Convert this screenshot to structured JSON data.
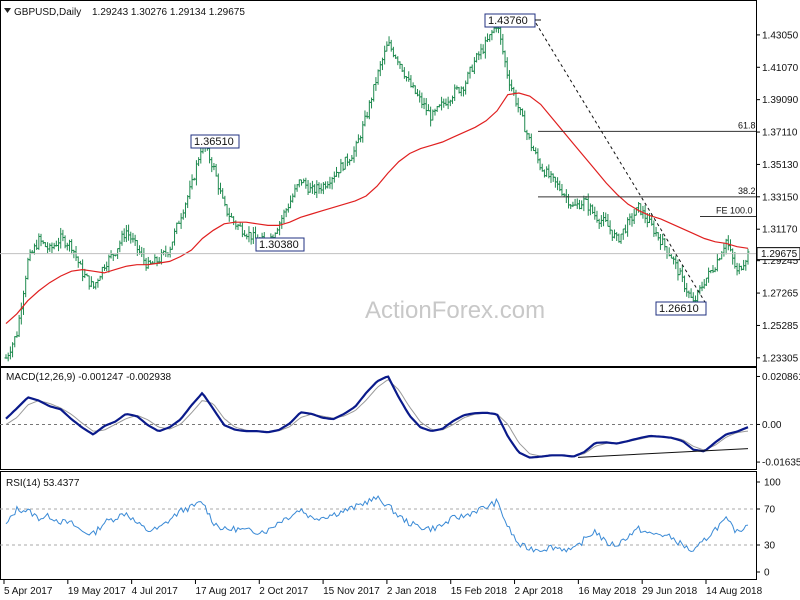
{
  "header": {
    "symbol": "GBPUSD,Daily",
    "ohlc": "1.29243 1.30276 1.29134 1.29675"
  },
  "watermark": "ActionForex.com",
  "colors": {
    "price_bar": "#1f8a4f",
    "ma": "#e02020",
    "macd_line": "#0a1a8a",
    "macd_signal": "#9a9a9a",
    "rsi_line": "#3a8ad6",
    "grid_dash": "#777777",
    "box_border": "#203080"
  },
  "chart_data": [
    {
      "type": "line",
      "name": "price",
      "series": [
        {
          "name": "",
          "values": [
            1.233,
            1.248,
            1.292,
            1.305,
            1.299,
            1.306,
            1.302,
            1.285,
            1.276,
            1.29,
            1.298,
            1.311,
            1.3,
            1.289,
            1.293,
            1.3,
            1.32,
            1.338,
            1.3651,
            1.35,
            1.325,
            1.315,
            1.31,
            1.305,
            1.3038,
            1.315,
            1.328,
            1.342,
            1.335,
            1.338,
            1.345,
            1.352,
            1.36,
            1.38,
            1.405,
            1.425,
            1.415,
            1.4,
            1.39,
            1.38,
            1.388,
            1.395,
            1.4,
            1.415,
            1.425,
            1.4376,
            1.405,
            1.385,
            1.365,
            1.35,
            1.342,
            1.335,
            1.325,
            1.329,
            1.32,
            1.315,
            1.305,
            1.315,
            1.325,
            1.315,
            1.305,
            1.295,
            1.28,
            1.2661,
            1.28,
            1.29,
            1.305,
            1.285,
            1.2968
          ]
        },
        {
          "name": "",
          "values": [
            1.254,
            1.26,
            1.268,
            1.274,
            1.279,
            1.283,
            1.286,
            1.287,
            1.286,
            1.285,
            1.287,
            1.289,
            1.29,
            1.29,
            1.291,
            1.292,
            1.295,
            1.299,
            1.306,
            1.311,
            1.315,
            1.316,
            1.316,
            1.315,
            1.314,
            1.314,
            1.316,
            1.319,
            1.321,
            1.323,
            1.325,
            1.327,
            1.329,
            1.332,
            1.338,
            1.346,
            1.353,
            1.358,
            1.361,
            1.363,
            1.365,
            1.368,
            1.371,
            1.374,
            1.378,
            1.384,
            1.394,
            1.395,
            1.393,
            1.388,
            1.38,
            1.372,
            1.364,
            1.356,
            1.348,
            1.34,
            1.333,
            1.327,
            1.323,
            1.32,
            1.318,
            1.315,
            1.312,
            1.309,
            1.306,
            1.304,
            1.303,
            1.301,
            1.3
          ]
        }
      ],
      "y_ticks": [
        "1.43050",
        "1.41070",
        "1.39090",
        "1.37110",
        "1.35130",
        "1.33150",
        "1.31170",
        "1.29245",
        "1.27265",
        "1.25285",
        "1.23305"
      ],
      "current_value": "1.29675",
      "ylim": [
        1.2305,
        1.4445
      ],
      "annotations": [
        "1.43760",
        "1.36510",
        "1.30380",
        "1.26610",
        "61.8",
        "38.2",
        "FE 100.0"
      ],
      "fib_levels": [
        {
          "label": "61.8",
          "value": 1.3715
        },
        {
          "label": "38.2",
          "value": 1.3315
        },
        {
          "label": "FE 100.0",
          "value": 1.3195
        }
      ],
      "trendline": [
        1.4376,
        1.2661
      ]
    },
    {
      "type": "line",
      "name": "macd",
      "title": "MACD(12,26,9) -0.001247 -0.002938",
      "y_ticks": [
        "0.020861",
        "0.00",
        "-0.016357"
      ],
      "ylim": [
        -0.0185,
        0.0228
      ],
      "series": [
        {
          "name": "",
          "values": [
            0.0025,
            0.007,
            0.0118,
            0.0104,
            0.0079,
            0.0066,
            0.0023,
            -0.0014,
            -0.0044,
            -0.0007,
            0.0012,
            0.0046,
            0.0036,
            -0.0003,
            -0.003,
            -0.0012,
            0.0022,
            0.0083,
            0.0137,
            0.0067,
            -0.0003,
            -0.0023,
            -0.0029,
            -0.0029,
            -0.0034,
            -0.0024,
            0.0004,
            0.0053,
            0.0046,
            0.0029,
            0.0023,
            0.0046,
            0.0077,
            0.0137,
            0.0187,
            0.021,
            0.0117,
            0.0037,
            -0.0013,
            -0.0029,
            -0.0019,
            0.0016,
            0.0041,
            0.0049,
            0.0051,
            0.0044,
            -0.0053,
            -0.0122,
            -0.0144,
            -0.014,
            -0.0134,
            -0.0134,
            -0.014,
            -0.012,
            -0.008,
            -0.0078,
            -0.0083,
            -0.0072,
            -0.006,
            -0.005,
            -0.0053,
            -0.0058,
            -0.0072,
            -0.011,
            -0.0117,
            -0.0078,
            -0.0043,
            -0.0031,
            -0.0012
          ]
        },
        {
          "name": "",
          "values": [
            0.0,
            0.003,
            0.0085,
            0.0104,
            0.0091,
            0.0072,
            0.0044,
            0.0005,
            -0.003,
            -0.0025,
            0.0,
            0.0025,
            0.004,
            0.002,
            -0.0012,
            -0.002,
            0.0001,
            0.005,
            0.0105,
            0.009,
            0.0025,
            -0.0012,
            -0.0025,
            -0.0029,
            -0.0031,
            -0.0028,
            -0.001,
            0.003,
            0.0045,
            0.0036,
            0.0027,
            0.0037,
            0.006,
            0.0105,
            0.016,
            0.0195,
            0.015,
            0.0075,
            0.001,
            -0.0022,
            -0.0024,
            0.0,
            0.003,
            0.0045,
            0.005,
            0.0046,
            0.0,
            -0.008,
            -0.0128,
            -0.0138,
            -0.0136,
            -0.0134,
            -0.0138,
            -0.0127,
            -0.0095,
            -0.0082,
            -0.0082,
            -0.0075,
            -0.0064,
            -0.0054,
            -0.0053,
            -0.0056,
            -0.0066,
            -0.0095,
            -0.0112,
            -0.009,
            -0.0055,
            -0.0035,
            -0.0029
          ]
        }
      ],
      "divergence_line": [
        -0.0143,
        -0.0105
      ]
    },
    {
      "type": "line",
      "name": "rsi",
      "title": "RSI(14) 53.4377",
      "y_ticks": [
        "100",
        "70",
        "30",
        "0"
      ],
      "ylim": [
        0,
        100
      ],
      "series": [
        {
          "name": "",
          "values": [
            52,
            70,
            68,
            60,
            62,
            56,
            54,
            45,
            42,
            55,
            60,
            66,
            54,
            46,
            48,
            58,
            68,
            72,
            78,
            55,
            47,
            48,
            46,
            45,
            46,
            56,
            62,
            70,
            60,
            61,
            64,
            68,
            72,
            78,
            82,
            74,
            62,
            54,
            50,
            48,
            52,
            60,
            62,
            68,
            72,
            78,
            50,
            30,
            26,
            25,
            28,
            26,
            24,
            36,
            46,
            32,
            30,
            40,
            48,
            42,
            42,
            38,
            30,
            22,
            35,
            48,
            58,
            44,
            53.4
          ]
        }
      ]
    }
  ],
  "x_axis": {
    "labels": [
      "5 Apr 2017",
      "19 May 2017",
      "4 Jul 2017",
      "17 Aug 2017",
      "2 Oct 2017",
      "15 Nov 2017",
      "2 Jan 2018",
      "15 Feb 2018",
      "2 Apr 2018",
      "16 May 2018",
      "29 Jun 2018",
      "14 Aug 2018"
    ]
  }
}
